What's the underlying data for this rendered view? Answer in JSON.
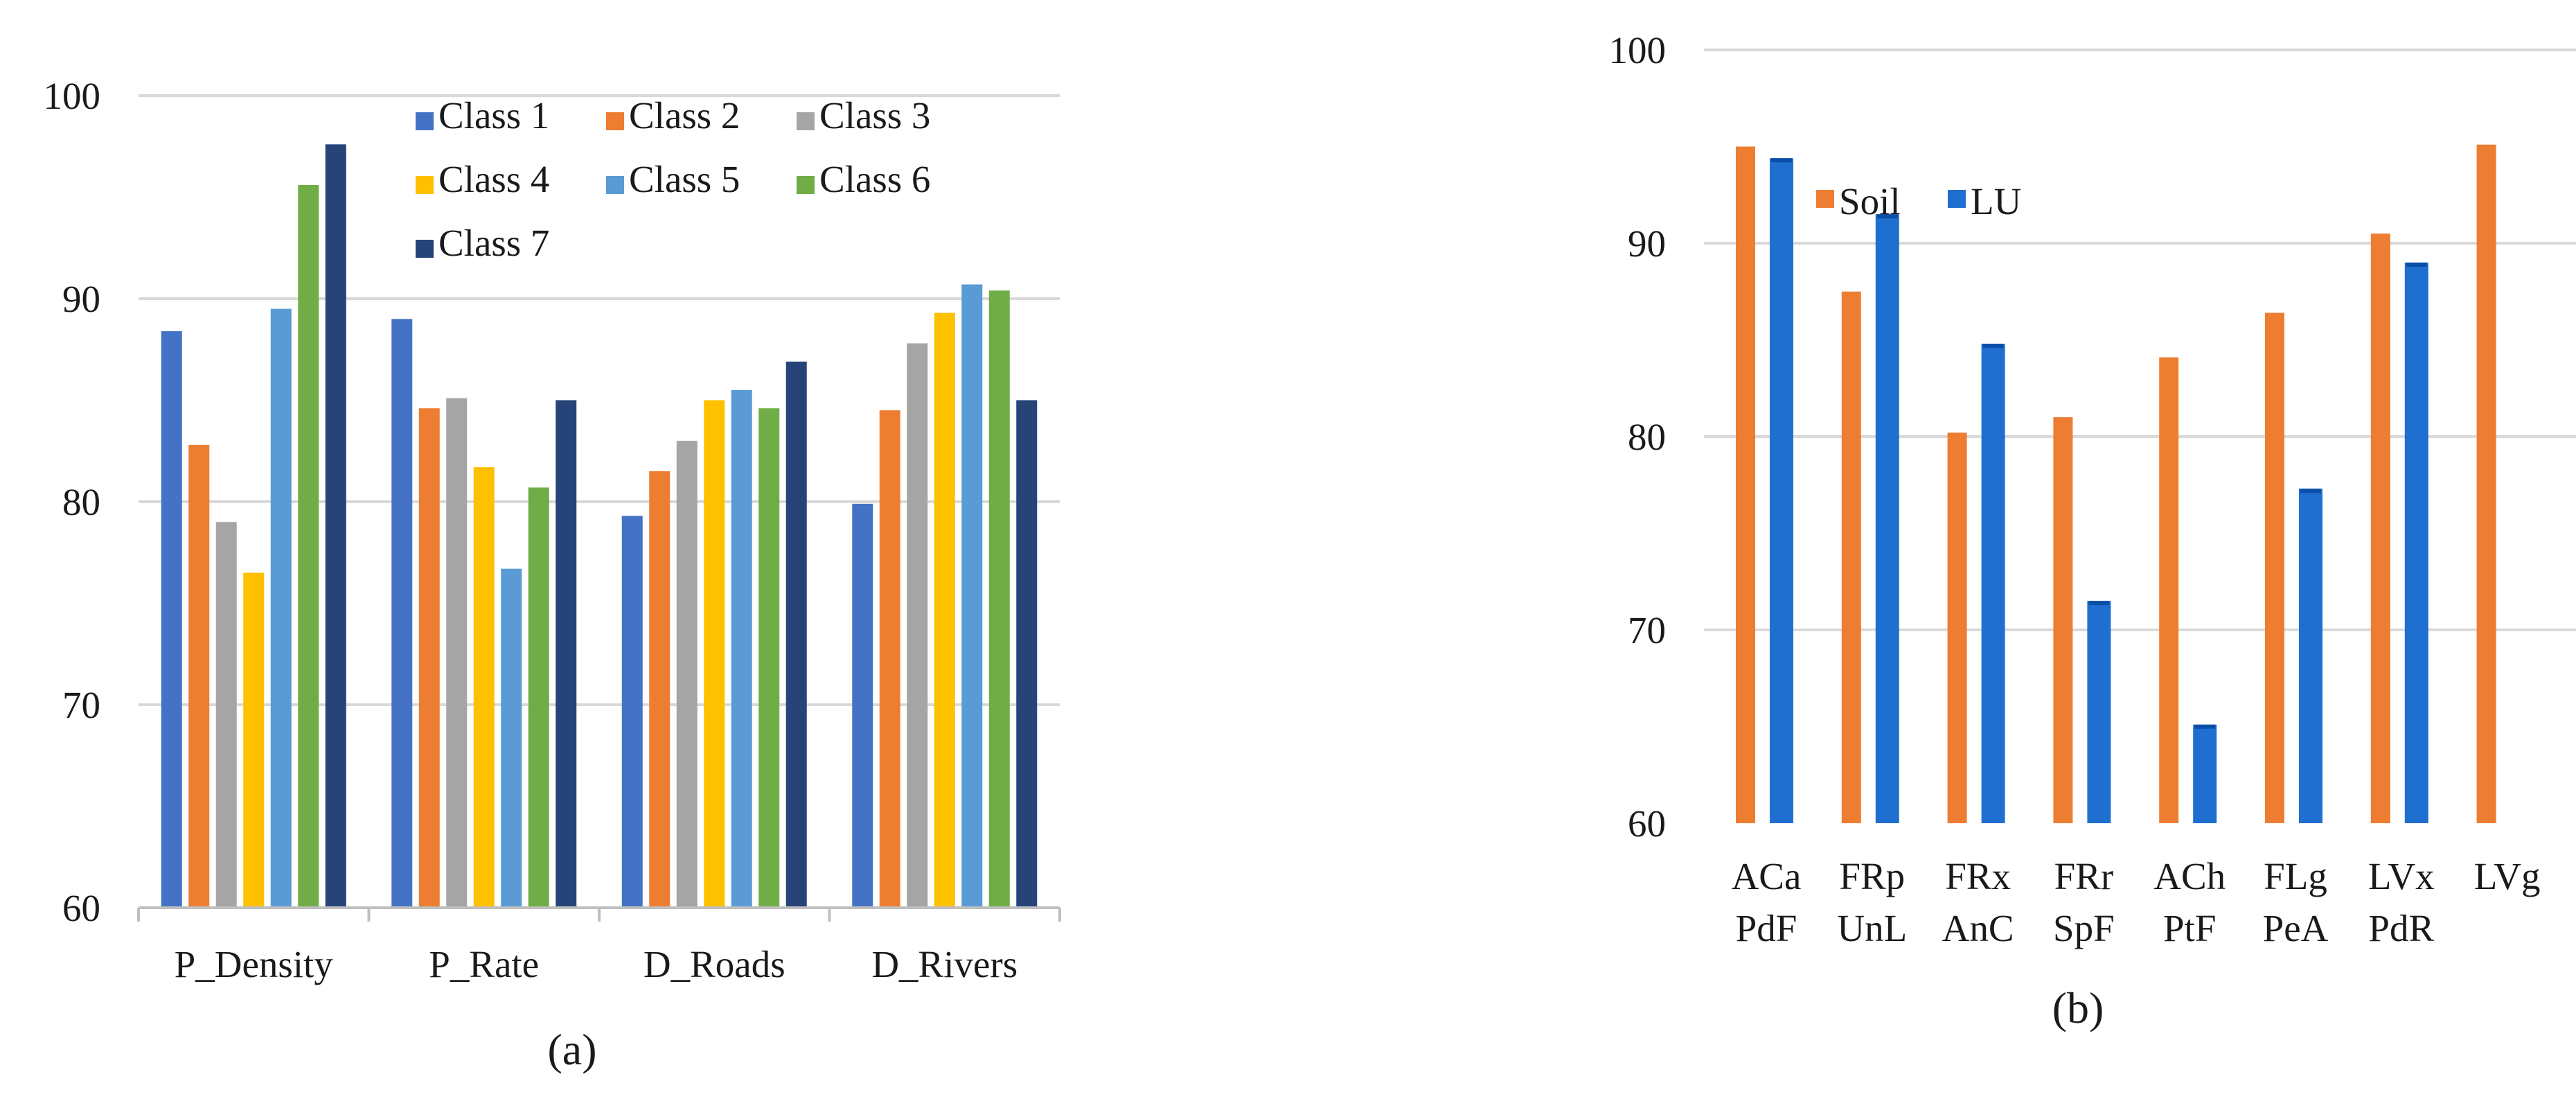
{
  "chart_data": [
    {
      "type": "bar",
      "panel_label": "(a)",
      "categories": [
        "P_Density",
        "P_Rate",
        "D_Roads",
        "D_Rivers"
      ],
      "series": [
        {
          "name": "Class 1",
          "color": "#4472C4",
          "values": [
            88.4,
            89.0,
            79.3,
            79.9
          ]
        },
        {
          "name": "Class 2",
          "color": "#ED7D31",
          "values": [
            82.8,
            84.6,
            81.5,
            84.5
          ]
        },
        {
          "name": "Class 3",
          "color": "#A5A5A5",
          "values": [
            79.0,
            85.1,
            83.0,
            87.8
          ]
        },
        {
          "name": "Class 4",
          "color": "#FFC000",
          "values": [
            76.5,
            81.7,
            85.0,
            89.3
          ]
        },
        {
          "name": "Class 5",
          "color": "#5B9BD5",
          "values": [
            89.5,
            76.7,
            85.5,
            90.7
          ]
        },
        {
          "name": "Class 6",
          "color": "#70AD47",
          "values": [
            95.6,
            80.7,
            84.6,
            90.4
          ]
        },
        {
          "name": "Class 7",
          "color": "#264478",
          "values": [
            97.6,
            85.0,
            86.9,
            85.0
          ]
        }
      ],
      "ylim": [
        60,
        100
      ],
      "yticks": [
        60,
        70,
        80,
        90,
        100
      ],
      "legend": "top-right",
      "grid": true
    },
    {
      "type": "bar",
      "panel_label": "(b)",
      "categories": [
        {
          "top": "ACa",
          "bottom": "PdF"
        },
        {
          "top": "FRp",
          "bottom": "UnL"
        },
        {
          "top": "FRx",
          "bottom": "AnC"
        },
        {
          "top": "FRr",
          "bottom": "SpF"
        },
        {
          "top": "ACh",
          "bottom": "PtF"
        },
        {
          "top": "FLg",
          "bottom": "PeA"
        },
        {
          "top": "LVx",
          "bottom": "PdR"
        },
        {
          "top": "LVg",
          "bottom": ""
        }
      ],
      "series": [
        {
          "name": "Soil",
          "color": "#ED7D31",
          "values": [
            95.0,
            87.5,
            80.2,
            81.0,
            84.1,
            86.4,
            90.5,
            95.1
          ]
        },
        {
          "name": "LU",
          "color": "#1F6FD0",
          "values": [
            94.4,
            91.5,
            84.8,
            71.5,
            65.1,
            77.3,
            89.0,
            null
          ]
        }
      ],
      "ylim": [
        60,
        100
      ],
      "yticks": [
        60,
        70,
        80,
        90,
        100
      ],
      "legend": "top-left",
      "grid": true
    }
  ]
}
